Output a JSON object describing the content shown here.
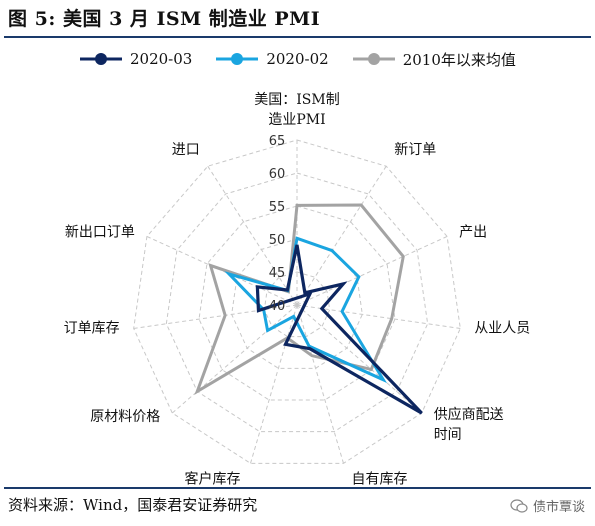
{
  "title": "图 5:  美国 3 月 ISM 制造业 PMI",
  "source": "资料来源：Wind，国泰君安证券研究",
  "watermark": "债市覃谈",
  "watermark_icon": "wechat-icon",
  "colors": {
    "rule": "#1a3a6b",
    "s2020_03": "#0d2660",
    "s2020_02": "#1aa5e0",
    "avg": "#a3a3a3",
    "grid": "#c8c8c8"
  },
  "chart_data": {
    "type": "radar",
    "title": "",
    "categories": [
      "美国：ISM制造业PMI",
      "新订单",
      "产出",
      "从业人员",
      "供应商配送时间",
      "自有库存",
      "客户库存",
      "原材料价格",
      "订单库存",
      "新出口订单",
      "进口"
    ],
    "category_label_lines": [
      [
        "美国：ISM制",
        "造业PMI"
      ],
      [
        "新订单"
      ],
      [
        "产出"
      ],
      [
        "从业人员"
      ],
      [
        "供应商配送",
        "时间"
      ],
      [
        "自有库存"
      ],
      [
        "客户库存"
      ],
      [
        "原材料价格"
      ],
      [
        "订单库存"
      ],
      [
        "新出口订单"
      ],
      [
        "进口"
      ]
    ],
    "rlim": [
      40,
      65
    ],
    "ticks": [
      40,
      45,
      50,
      55,
      60,
      65
    ],
    "grid": true,
    "legend_position": "top",
    "series": [
      {
        "name": "2020-03",
        "values": [
          49.1,
          42.2,
          47.7,
          43.8,
          65.0,
          46.9,
          46.2,
          37.4,
          45.9,
          46.6,
          42.7
        ]
      },
      {
        "name": "2020-02",
        "values": [
          50.1,
          49.8,
          50.3,
          46.9,
          57.3,
          46.5,
          41.8,
          45.9,
          45.1,
          51.3,
          42.6
        ]
      },
      {
        "name": "2010年以来均值",
        "values": [
          55.1,
          58.0,
          57.7,
          54.5,
          54.9,
          48.0,
          45.2,
          60.0,
          51.0,
          54.4,
          42.4
        ]
      }
    ]
  }
}
